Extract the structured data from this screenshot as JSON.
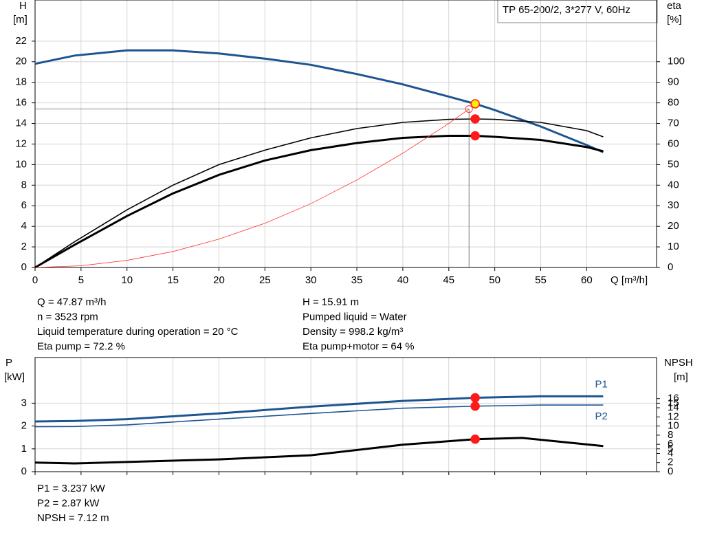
{
  "chart_data": [
    {
      "type": "line",
      "title": "TP 65-200/2, 3*277 V, 60Hz",
      "ylabel": [
        "H",
        "[m]"
      ],
      "y2label": [
        "eta",
        "[%]"
      ],
      "xlabel": "Q [m³/h]",
      "xlim": [
        0,
        67.6
      ],
      "xticks": [
        0,
        5,
        10,
        15,
        20,
        25,
        30,
        35,
        40,
        45,
        50,
        55,
        60
      ],
      "xtick_labels": true,
      "ylim": [
        0,
        26
      ],
      "yticks": [
        0,
        2,
        4,
        6,
        8,
        10,
        12,
        14,
        16,
        18,
        20,
        22
      ],
      "y2lim": [
        0,
        130
      ],
      "y2ticks": [
        0,
        10,
        20,
        30,
        40,
        50,
        60,
        70,
        80,
        90,
        100
      ],
      "grid": true,
      "operating_x": 47.87,
      "series": [
        {
          "color": "#1d5592",
          "line_width": 3,
          "marker_color": "#ffee00",
          "x": [
            0,
            4.3,
            10,
            15,
            20,
            25,
            30,
            35,
            40,
            45,
            47.87,
            50,
            55,
            60,
            61.8
          ],
          "values": [
            19.8,
            20.6,
            21.1,
            21.1,
            20.8,
            20.3,
            19.7,
            18.8,
            17.8,
            16.6,
            15.91,
            15.3,
            13.7,
            11.9,
            11.2
          ]
        },
        {
          "color": "#000000",
          "line_width": 1.6,
          "axis": "y2",
          "marker_color": "#ff1a1a",
          "x": [
            0,
            4.3,
            10,
            15,
            20,
            25,
            30,
            35,
            40,
            45,
            47.87,
            50,
            55,
            60,
            61.8
          ],
          "values": [
            0,
            12.5,
            28,
            40,
            50,
            57,
            63,
            67.5,
            70.5,
            72,
            72.2,
            72,
            70.5,
            66.5,
            63.5
          ]
        },
        {
          "color": "#000000",
          "line_width": 3,
          "axis": "y2",
          "marker_color": "#ff1a1a",
          "x": [
            0,
            4.3,
            10,
            15,
            20,
            25,
            30,
            35,
            40,
            45,
            47.87,
            50,
            55,
            60,
            61.8
          ],
          "values": [
            0,
            11,
            25,
            36,
            45,
            52,
            57,
            60.5,
            63,
            64,
            64,
            63.5,
            62,
            58.5,
            56.5
          ]
        },
        {
          "color": "#ff3030",
          "line_width": 0.8,
          "end_marker": "open",
          "crosshair": true,
          "x": [
            0,
            5,
            10,
            15,
            20,
            25,
            30,
            35,
            40,
            45,
            47.2
          ],
          "values": [
            0,
            0.17,
            0.69,
            1.55,
            2.76,
            4.3,
            6.2,
            8.5,
            11.1,
            14.0,
            15.4
          ]
        }
      ]
    },
    {
      "type": "line",
      "ylabel": [
        "P",
        "[kW]"
      ],
      "y2label": [
        "NPSH",
        "[m]"
      ],
      "xlim": [
        0,
        67.6
      ],
      "xticks": [
        0,
        5,
        10,
        15,
        20,
        25,
        30,
        35,
        40,
        45,
        50,
        55,
        60
      ],
      "xtick_labels": false,
      "ylim": [
        0,
        5
      ],
      "yticks": [
        0,
        1,
        2,
        3
      ],
      "y2lim": [
        0,
        25
      ],
      "y2ticks": [
        0,
        2,
        4,
        5,
        6,
        8,
        10,
        12,
        14,
        15,
        16
      ],
      "grid": true,
      "operating_x": 47.87,
      "series": [
        {
          "name": "P1",
          "label_side": "above",
          "color": "#1d5592",
          "line_width": 3,
          "marker_color": "#ff1a1a",
          "x": [
            0,
            4.3,
            10,
            20,
            30,
            40,
            47.87,
            55,
            61.8
          ],
          "values": [
            2.2,
            2.22,
            2.3,
            2.55,
            2.85,
            3.1,
            3.237,
            3.3,
            3.3
          ]
        },
        {
          "name": "P2",
          "label_side": "below",
          "color": "#1d5592",
          "line_width": 1.6,
          "marker_color": "#ff1a1a",
          "x": [
            0,
            4.3,
            10,
            20,
            30,
            40,
            47.87,
            55,
            61.8
          ],
          "values": [
            1.97,
            1.98,
            2.05,
            2.3,
            2.55,
            2.78,
            2.87,
            2.92,
            2.92
          ]
        },
        {
          "color": "#000000",
          "line_width": 3,
          "axis": "y2",
          "marker_color": "#ff1a1a",
          "x": [
            0,
            4.3,
            20,
            30,
            40,
            47.87,
            53,
            61.8
          ],
          "values": [
            2.0,
            1.8,
            2.7,
            3.6,
            5.9,
            7.12,
            7.4,
            5.6
          ]
        }
      ]
    }
  ],
  "readouts": {
    "duty_left": [
      "Q = 47.87 m³/h",
      "n = 3523 rpm",
      "Liquid temperature during operation = 20 °C",
      "Eta pump = 72.2 %"
    ],
    "duty_right": [
      "H = 15.91 m",
      "Pumped liquid = Water",
      "Density = 998.2 kg/m³",
      "Eta pump+motor = 64 %"
    ],
    "power": [
      "P1 = 3.237 kW",
      "P2 = 2.87 kW",
      "NPSH = 7.12 m"
    ]
  }
}
